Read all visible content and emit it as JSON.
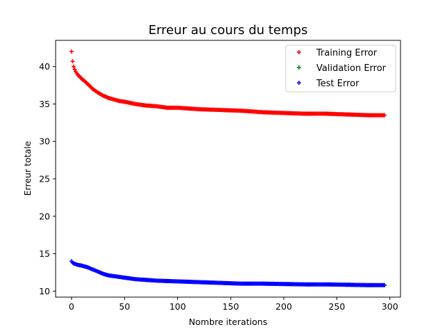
{
  "chart_data": {
    "type": "scatter",
    "title": "Erreur au cours du temps",
    "xlabel": "Nombre iterations",
    "ylabel": "Erreur totale",
    "xlim": [
      -15,
      310
    ],
    "ylim": [
      9.2,
      43.5
    ],
    "xticks": [
      0,
      50,
      100,
      150,
      200,
      250,
      300
    ],
    "yticks": [
      10,
      15,
      20,
      25,
      30,
      35,
      40
    ],
    "grid": false,
    "legend_position": "top-right",
    "marker": "plus",
    "series": [
      {
        "name": "Training Error",
        "color": "#ff0000",
        "x": [
          0,
          1,
          2,
          3,
          4,
          5,
          6,
          8,
          10,
          12,
          15,
          18,
          20,
          25,
          30,
          35,
          40,
          45,
          50,
          60,
          70,
          80,
          90,
          100,
          120,
          140,
          160,
          180,
          200,
          220,
          240,
          260,
          280,
          295
        ],
        "y": [
          42.0,
          40.7,
          40.0,
          39.6,
          39.3,
          39.1,
          38.9,
          38.6,
          38.3,
          38.1,
          37.7,
          37.3,
          37.0,
          36.5,
          36.1,
          35.8,
          35.6,
          35.4,
          35.3,
          35.0,
          34.8,
          34.7,
          34.5,
          34.5,
          34.3,
          34.2,
          34.1,
          33.9,
          33.8,
          33.7,
          33.7,
          33.6,
          33.5,
          33.5
        ]
      },
      {
        "name": "Validation Error",
        "color": "#008000",
        "x": [],
        "y": []
      },
      {
        "name": "Test Error",
        "color": "#0000ff",
        "x": [
          0,
          1,
          2,
          3,
          4,
          5,
          6,
          8,
          10,
          12,
          15,
          18,
          20,
          25,
          30,
          35,
          40,
          45,
          50,
          60,
          70,
          80,
          90,
          100,
          120,
          140,
          160,
          180,
          200,
          220,
          240,
          260,
          280,
          295
        ],
        "y": [
          14.0,
          13.8,
          13.7,
          13.65,
          13.6,
          13.55,
          13.5,
          13.45,
          13.4,
          13.3,
          13.2,
          13.0,
          12.9,
          12.6,
          12.3,
          12.1,
          12.0,
          11.9,
          11.8,
          11.6,
          11.5,
          11.4,
          11.35,
          11.3,
          11.2,
          11.1,
          11.0,
          11.0,
          10.95,
          10.9,
          10.9,
          10.85,
          10.8,
          10.8
        ]
      }
    ]
  }
}
